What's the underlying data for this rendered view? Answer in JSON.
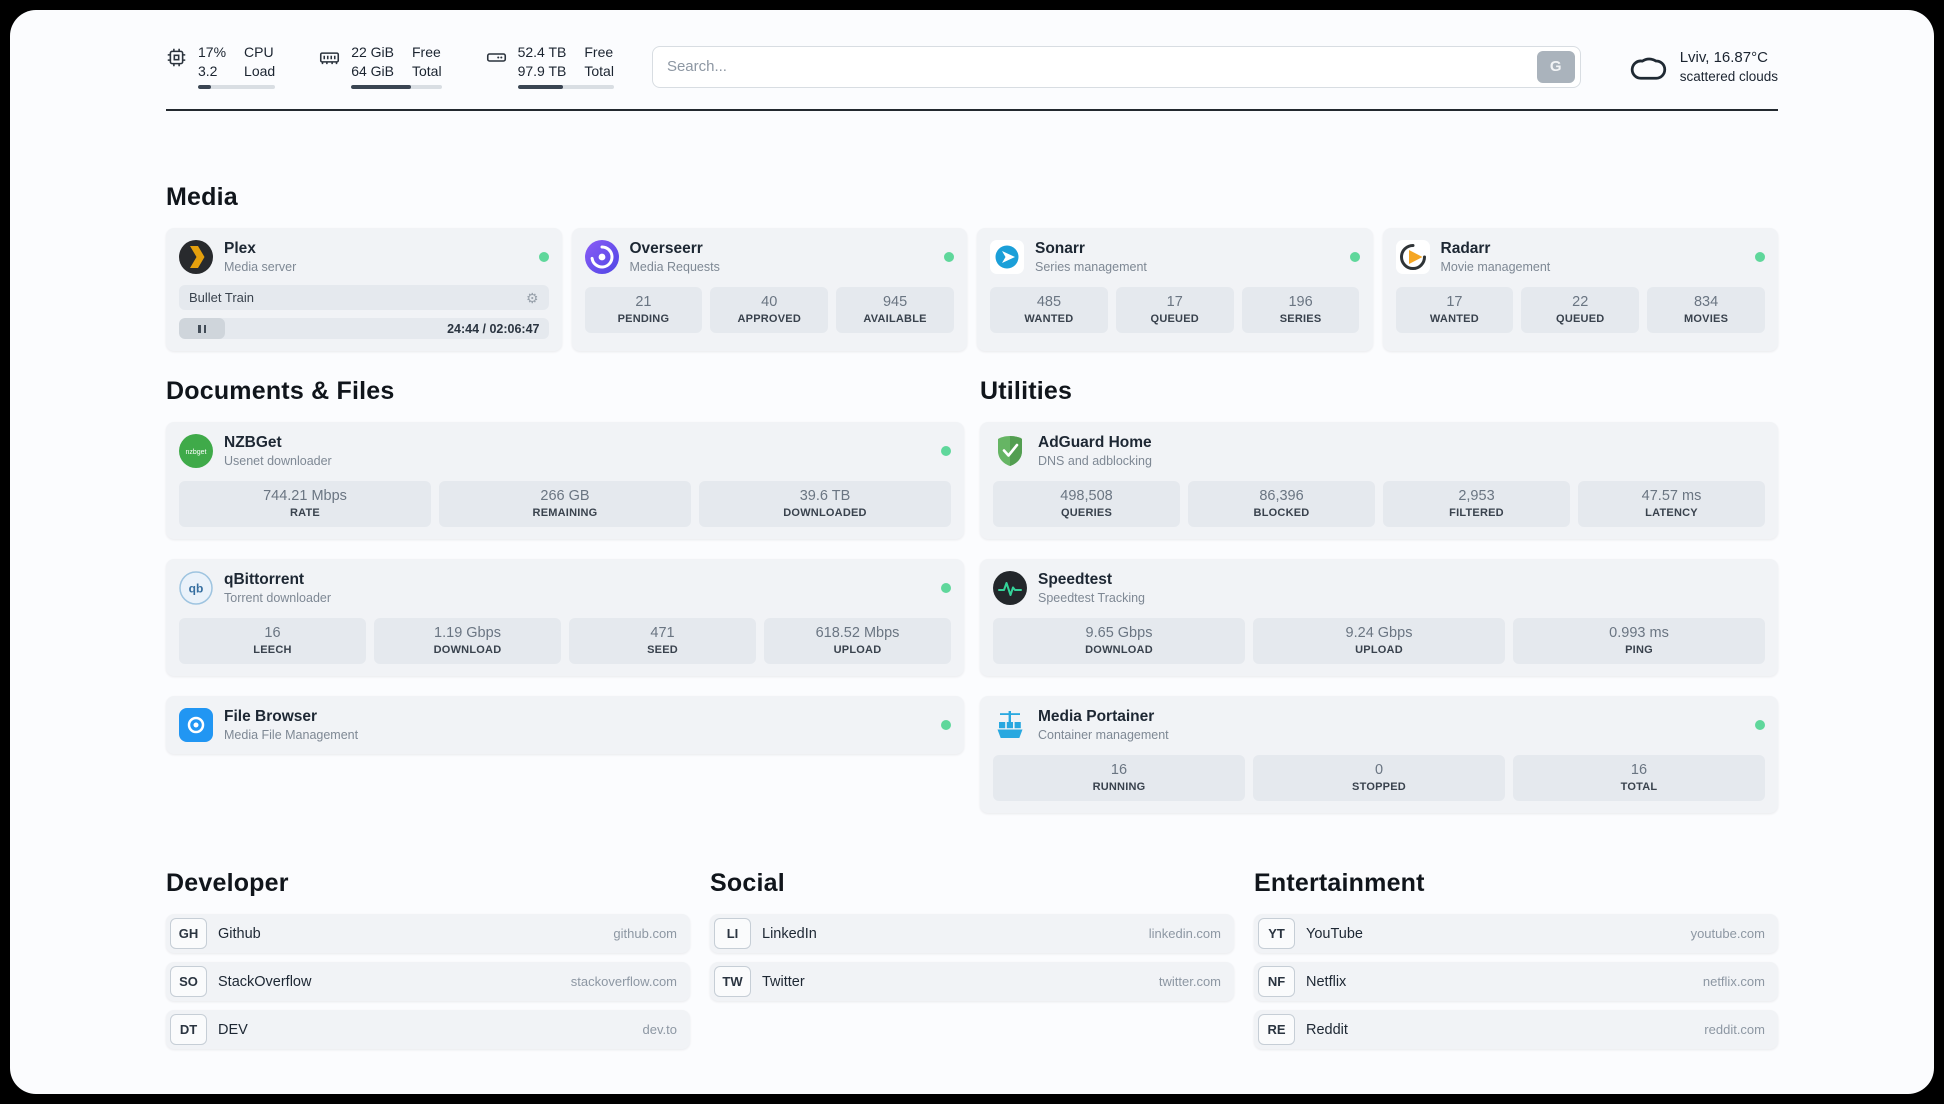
{
  "topbar": {
    "cpu": {
      "line1": "17%",
      "line2": "3.2",
      "label1": "CPU",
      "label2": "Load",
      "progress": 17
    },
    "ram": {
      "line1": "22 GiB",
      "line2": "64 GiB",
      "label1": "Free",
      "label2": "Total",
      "progress": 66
    },
    "disk": {
      "line1": "52.4 TB",
      "line2": "97.9 TB",
      "label1": "Free",
      "label2": "Total",
      "progress": 47
    },
    "search": {
      "placeholder": "Search...",
      "button_label": "G"
    },
    "weather": {
      "location": "Lviv, 16.87°C",
      "condition": "scattered clouds"
    }
  },
  "media": {
    "title": "Media",
    "plex": {
      "name": "Plex",
      "subtitle": "Media server",
      "now_playing": "Bullet Train",
      "time": "24:44 / 02:06:47"
    },
    "overseerr": {
      "name": "Overseerr",
      "subtitle": "Media Requests",
      "stats": [
        {
          "value": "21",
          "label": "PENDING"
        },
        {
          "value": "40",
          "label": "APPROVED"
        },
        {
          "value": "945",
          "label": "AVAILABLE"
        }
      ]
    },
    "sonarr": {
      "name": "Sonarr",
      "subtitle": "Series management",
      "stats": [
        {
          "value": "485",
          "label": "WANTED"
        },
        {
          "value": "17",
          "label": "QUEUED"
        },
        {
          "value": "196",
          "label": "SERIES"
        }
      ]
    },
    "radarr": {
      "name": "Radarr",
      "subtitle": "Movie management",
      "stats": [
        {
          "value": "17",
          "label": "WANTED"
        },
        {
          "value": "22",
          "label": "QUEUED"
        },
        {
          "value": "834",
          "label": "MOVIES"
        }
      ]
    }
  },
  "documents": {
    "title": "Documents & Files",
    "nzbget": {
      "name": "NZBGet",
      "subtitle": "Usenet downloader",
      "stats": [
        {
          "value": "744.21 Mbps",
          "label": "RATE"
        },
        {
          "value": "266 GB",
          "label": "REMAINING"
        },
        {
          "value": "39.6 TB",
          "label": "DOWNLOADED"
        }
      ]
    },
    "qbittorrent": {
      "name": "qBittorrent",
      "subtitle": "Torrent downloader",
      "stats": [
        {
          "value": "16",
          "label": "LEECH"
        },
        {
          "value": "1.19 Gbps",
          "label": "DOWNLOAD"
        },
        {
          "value": "471",
          "label": "SEED"
        },
        {
          "value": "618.52 Mbps",
          "label": "UPLOAD"
        }
      ]
    },
    "filebrowser": {
      "name": "File Browser",
      "subtitle": "Media File Management"
    }
  },
  "utilities": {
    "title": "Utilities",
    "adguard": {
      "name": "AdGuard Home",
      "subtitle": "DNS and adblocking",
      "stats": [
        {
          "value": "498,508",
          "label": "QUERIES"
        },
        {
          "value": "86,396",
          "label": "BLOCKED"
        },
        {
          "value": "2,953",
          "label": "FILTERED"
        },
        {
          "value": "47.57 ms",
          "label": "LATENCY"
        }
      ]
    },
    "speedtest": {
      "name": "Speedtest",
      "subtitle": "Speedtest Tracking",
      "stats": [
        {
          "value": "9.65 Gbps",
          "label": "DOWNLOAD"
        },
        {
          "value": "9.24 Gbps",
          "label": "UPLOAD"
        },
        {
          "value": "0.993 ms",
          "label": "PING"
        }
      ]
    },
    "portainer": {
      "name": "Media Portainer",
      "subtitle": "Container management",
      "stats": [
        {
          "value": "16",
          "label": "RUNNING"
        },
        {
          "value": "0",
          "label": "STOPPED"
        },
        {
          "value": "16",
          "label": "TOTAL"
        }
      ]
    }
  },
  "links": {
    "developer": {
      "title": "Developer",
      "items": [
        {
          "badge": "GH",
          "name": "Github",
          "url": "github.com"
        },
        {
          "badge": "SO",
          "name": "StackOverflow",
          "url": "stackoverflow.com"
        },
        {
          "badge": "DT",
          "name": "DEV",
          "url": "dev.to"
        }
      ]
    },
    "social": {
      "title": "Social",
      "items": [
        {
          "badge": "LI",
          "name": "LinkedIn",
          "url": "linkedin.com"
        },
        {
          "badge": "TW",
          "name": "Twitter",
          "url": "twitter.com"
        }
      ]
    },
    "entertainment": {
      "title": "Entertainment",
      "items": [
        {
          "badge": "YT",
          "name": "YouTube",
          "url": "youtube.com"
        },
        {
          "badge": "NF",
          "name": "Netflix",
          "url": "netflix.com"
        },
        {
          "badge": "RE",
          "name": "Reddit",
          "url": "reddit.com"
        }
      ]
    }
  }
}
